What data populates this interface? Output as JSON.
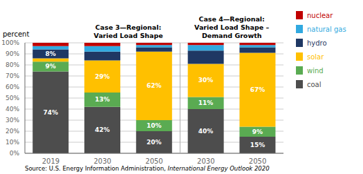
{
  "chart_data": {
    "type": "bar",
    "stacked": true,
    "data_labels": true,
    "grid": true,
    "y_label": "percent",
    "categories": [
      "2019",
      "2030",
      "2050",
      "2030",
      "2050"
    ],
    "ylim": [
      0,
      100
    ],
    "yticks": [
      {
        "value": 0,
        "label": "0%"
      },
      {
        "value": 10,
        "label": "10%"
      },
      {
        "value": 20,
        "label": "20%"
      },
      {
        "value": 30,
        "label": "30%"
      },
      {
        "value": 40,
        "label": "40%"
      },
      {
        "value": 50,
        "label": "50%"
      },
      {
        "value": 60,
        "label": "60%"
      },
      {
        "value": 70,
        "label": "70%"
      },
      {
        "value": 80,
        "label": "80%"
      },
      {
        "value": 90,
        "label": "90%"
      },
      {
        "value": 100,
        "label": "100%"
      }
    ],
    "series": [
      {
        "name": "coal",
        "color": "#4d4d4d",
        "values": [
          74,
          42,
          20,
          40,
          15
        ],
        "value_labels": [
          "74%",
          "42%",
          "20%",
          "40%",
          "15%"
        ]
      },
      {
        "name": "wind",
        "color": "#5aab52",
        "values": [
          9,
          13,
          10,
          11,
          9
        ],
        "value_labels": [
          "9%",
          "13%",
          "10%",
          "11%",
          "9%"
        ]
      },
      {
        "name": "solar",
        "color": "#ffc000",
        "values": [
          3,
          29,
          62,
          30,
          67
        ],
        "value_labels": [
          null,
          "29%",
          "62%",
          "30%",
          "67%"
        ]
      },
      {
        "name": "hydro",
        "color": "#1f3864",
        "values": [
          8,
          8,
          4,
          12,
          5
        ],
        "value_labels": [
          "8%",
          null,
          null,
          null,
          null
        ]
      },
      {
        "name": "natural gas",
        "color": "#31a9e0",
        "values": [
          3,
          5,
          2,
          5,
          2
        ]
      },
      {
        "name": "nuclear",
        "color": "#c00000",
        "values": [
          3,
          3,
          2,
          2,
          2
        ]
      }
    ],
    "annotations": [
      "Case 3—Regional:\nVaried Load Shape",
      "Case 4—Regional:\nVaried Load Shape –\nDemand Growth",
      "Source: U.S. Energy Information Administration, ",
      "International Energy Outlook 2020"
    ]
  }
}
